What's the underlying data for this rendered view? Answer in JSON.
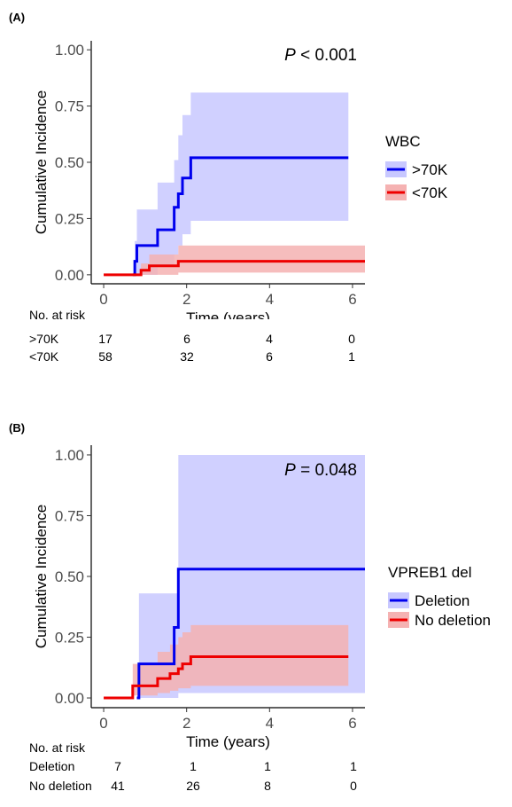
{
  "panels": [
    {
      "label": "(A)",
      "p_value_prefix": "P",
      "p_value_rest": " < 0.001",
      "risk_title": "No. at risk",
      "risk_rows": [
        {
          "label": ">70K",
          "values": [
            "17",
            "6",
            "4",
            "0"
          ]
        },
        {
          "label": "<70K",
          "values": [
            "58",
            "32",
            "6",
            "1"
          ]
        }
      ]
    },
    {
      "label": "(B)",
      "p_value_prefix": "P",
      "p_value_rest": " = 0.048",
      "risk_title": "No. at risk",
      "risk_rows": [
        {
          "label": "Deletion",
          "values": [
            "7",
            "1",
            "1",
            "1"
          ]
        },
        {
          "label": "No deletion",
          "values": [
            "41",
            "26",
            "8",
            "0"
          ]
        }
      ]
    }
  ],
  "chart_data": [
    {
      "type": "line",
      "subtype": "step cumulative incidence with confidence bands",
      "xlabel": "Time (years)",
      "ylabel": "Cumulative Incidence",
      "xlim": [
        -0.3,
        6.3
      ],
      "ylim": [
        -0.04,
        1.04
      ],
      "xticks": [
        0,
        2,
        4,
        6
      ],
      "yticks": [
        0.0,
        0.25,
        0.5,
        0.75,
        1.0
      ],
      "ytick_labels": [
        "0.00",
        "0.25",
        "0.50",
        "0.75",
        "1.00"
      ],
      "legend_title": "WBC",
      "legend_position": "right",
      "series": [
        {
          "name": ">70K",
          "color": "#0000ee",
          "band_color": "#c8c8ff",
          "steps": [
            [
              0.7,
              0.0
            ],
            [
              0.75,
              0.06
            ],
            [
              0.8,
              0.13
            ],
            [
              1.3,
              0.2
            ],
            [
              1.7,
              0.3
            ],
            [
              1.8,
              0.36
            ],
            [
              1.9,
              0.43
            ],
            [
              2.1,
              0.52
            ],
            [
              5.9,
              0.52
            ]
          ],
          "band": [
            [
              0.7,
              0.0,
              0.0
            ],
            [
              0.75,
              0.0,
              0.15
            ],
            [
              0.8,
              0.0,
              0.29
            ],
            [
              1.3,
              0.04,
              0.41
            ],
            [
              1.7,
              0.09,
              0.51
            ],
            [
              1.8,
              0.13,
              0.62
            ],
            [
              1.9,
              0.18,
              0.71
            ],
            [
              2.1,
              0.24,
              0.81
            ],
            [
              5.9,
              0.24,
              0.81
            ]
          ]
        },
        {
          "name": "<70K",
          "color": "#ee0000",
          "band_color": "#f5b2b2",
          "steps": [
            [
              0.0,
              0.0
            ],
            [
              0.7,
              0.0
            ],
            [
              0.9,
              0.02
            ],
            [
              1.1,
              0.04
            ],
            [
              1.8,
              0.06
            ],
            [
              6.3,
              0.06
            ]
          ],
          "band": [
            [
              0.9,
              0.0,
              0.05
            ],
            [
              1.1,
              0.0,
              0.09
            ],
            [
              1.8,
              0.01,
              0.13
            ],
            [
              6.3,
              0.01,
              0.13
            ]
          ]
        }
      ]
    },
    {
      "type": "line",
      "subtype": "step cumulative incidence with confidence bands",
      "xlabel": "Time (years)",
      "ylabel": "Cumulative Incidence",
      "xlim": [
        -0.3,
        6.3
      ],
      "ylim": [
        -0.04,
        1.04
      ],
      "xticks": [
        0,
        2,
        4,
        6
      ],
      "yticks": [
        0.0,
        0.25,
        0.5,
        0.75,
        1.0
      ],
      "ytick_labels": [
        "0.00",
        "0.25",
        "0.50",
        "0.75",
        "1.00"
      ],
      "legend_title": "VPREB1 del",
      "legend_position": "right",
      "series": [
        {
          "name": "Deletion",
          "color": "#0000ee",
          "band_color": "#c8c8ff",
          "steps": [
            [
              0.8,
              0.0
            ],
            [
              0.85,
              0.14
            ],
            [
              1.7,
              0.29
            ],
            [
              1.8,
              0.53
            ],
            [
              6.3,
              0.53
            ]
          ],
          "band": [
            [
              0.8,
              0.0,
              0.0
            ],
            [
              0.85,
              0.0,
              0.43
            ],
            [
              1.8,
              0.02,
              1.0
            ],
            [
              6.3,
              0.02,
              1.0
            ]
          ]
        },
        {
          "name": "No deletion",
          "color": "#ee0000",
          "band_color": "#f5b2b2",
          "steps": [
            [
              0.0,
              0.0
            ],
            [
              0.6,
              0.0
            ],
            [
              0.7,
              0.05
            ],
            [
              1.3,
              0.08
            ],
            [
              1.6,
              0.1
            ],
            [
              1.8,
              0.12
            ],
            [
              1.9,
              0.14
            ],
            [
              2.1,
              0.17
            ],
            [
              5.9,
              0.17
            ]
          ],
          "band": [
            [
              0.6,
              0.0,
              0.0
            ],
            [
              0.7,
              0.01,
              0.14
            ],
            [
              1.3,
              0.02,
              0.19
            ],
            [
              1.6,
              0.03,
              0.22
            ],
            [
              1.8,
              0.04,
              0.25
            ],
            [
              1.9,
              0.04,
              0.27
            ],
            [
              2.1,
              0.05,
              0.3
            ],
            [
              5.9,
              0.05,
              0.3
            ]
          ]
        }
      ]
    }
  ]
}
